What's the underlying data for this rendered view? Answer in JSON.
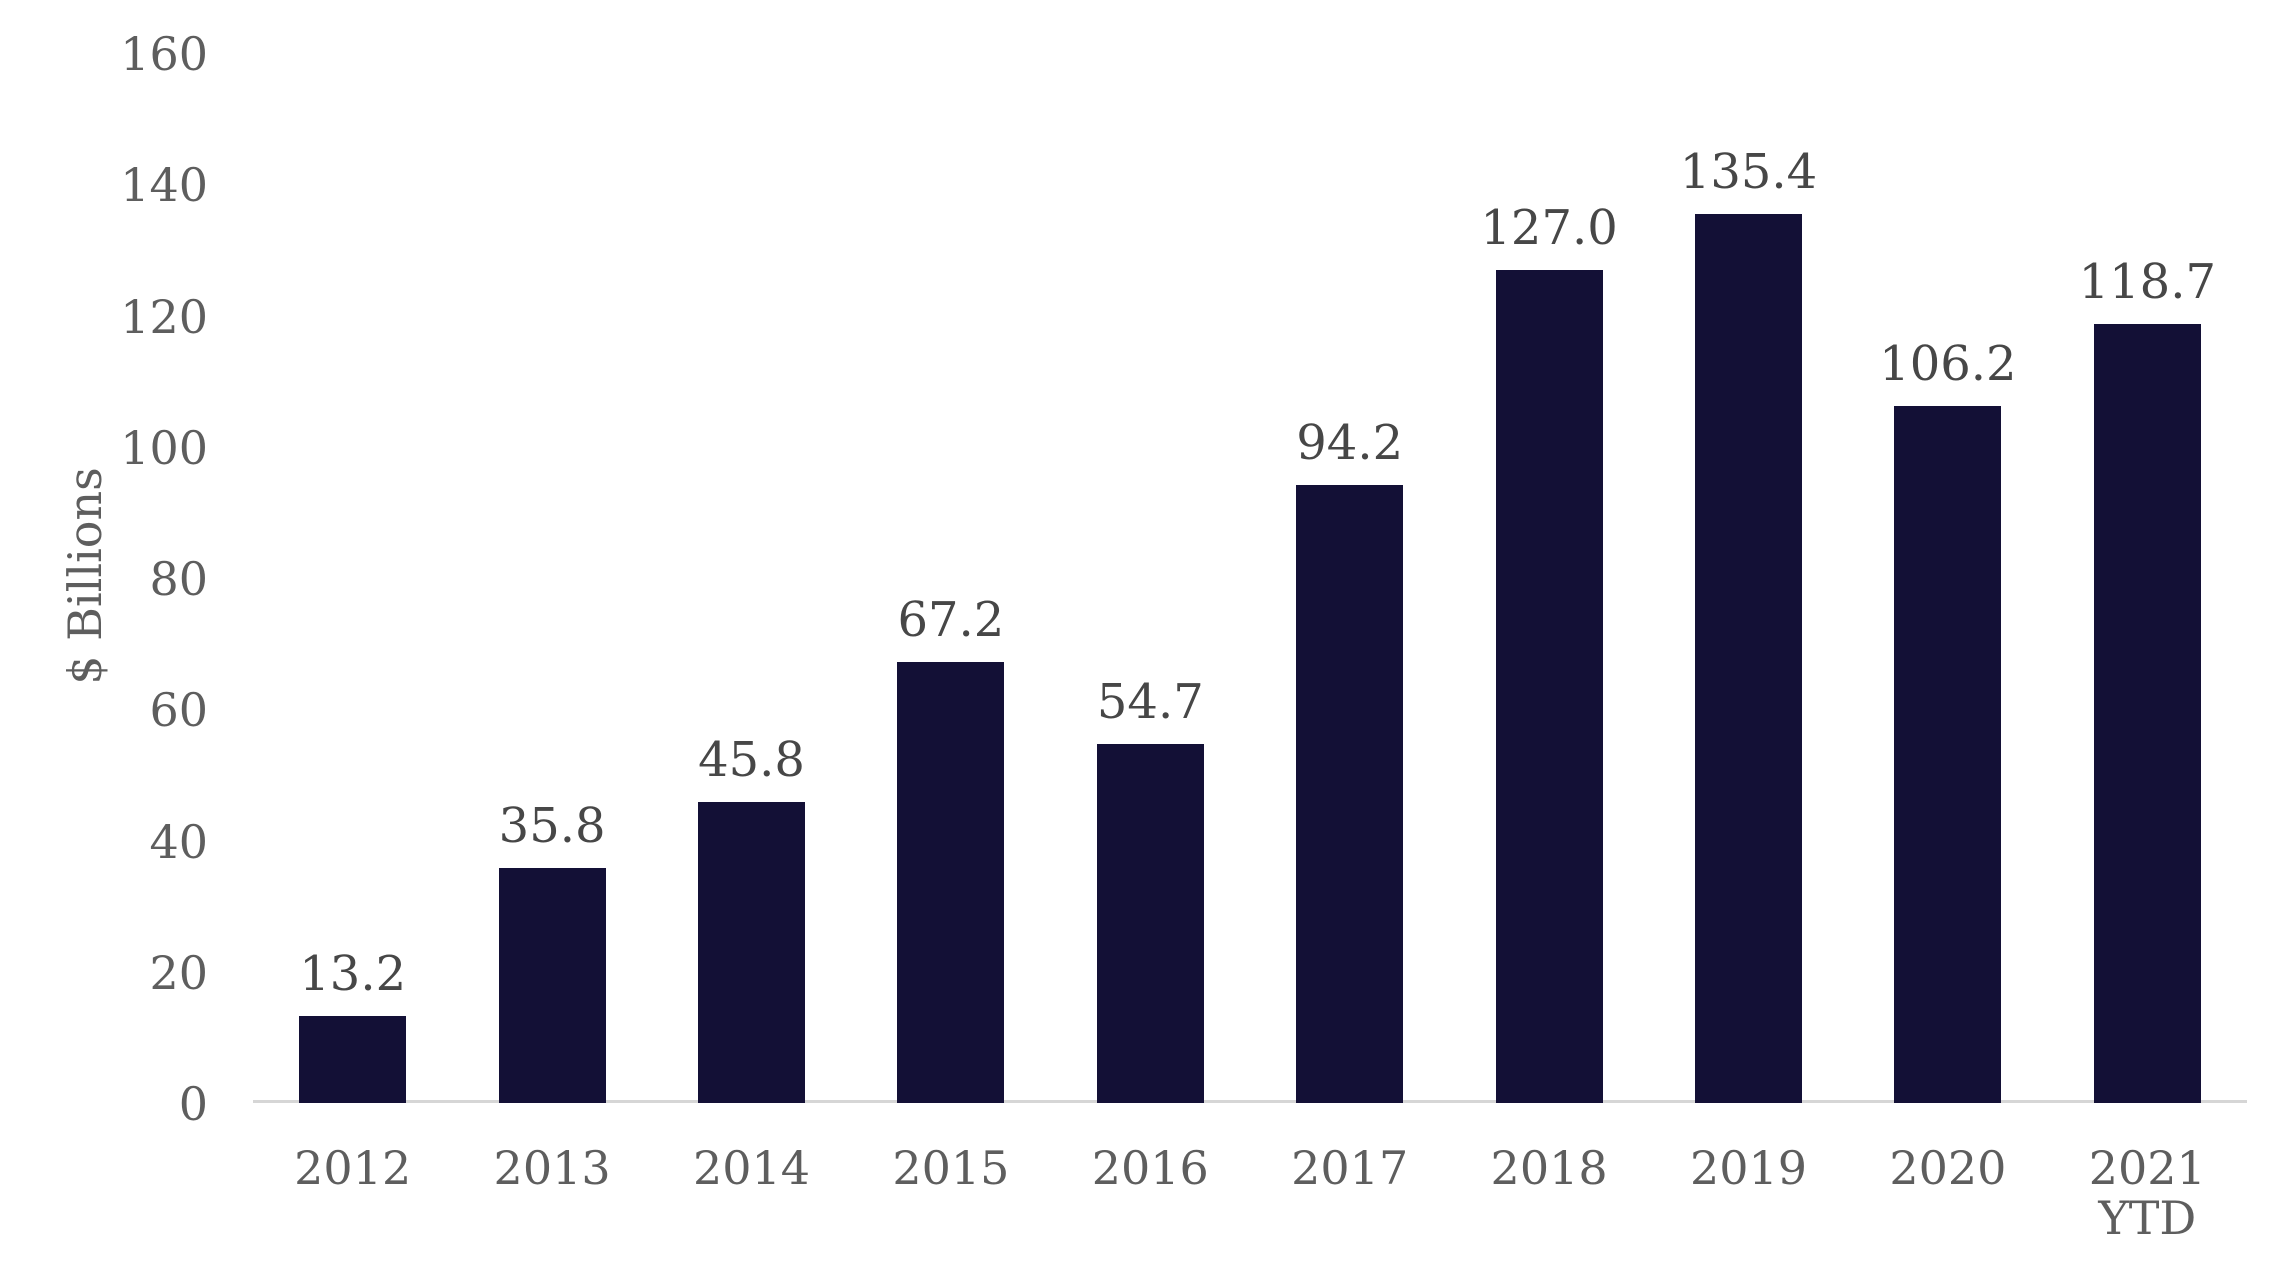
{
  "chart_data": {
    "type": "bar",
    "title": "",
    "xlabel": "",
    "ylabel": "$ Billions",
    "categories": [
      "2012",
      "2013",
      "2014",
      "2015",
      "2016",
      "2017",
      "2018",
      "2019",
      "2020",
      "2021\nYTD"
    ],
    "values": [
      13.2,
      35.8,
      45.8,
      67.2,
      54.7,
      94.2,
      127.0,
      135.4,
      106.2,
      118.7
    ],
    "value_labels": [
      "13.2",
      "35.8",
      "45.8",
      "67.2",
      "54.7",
      "94.2",
      "127.0",
      "135.4",
      "106.2",
      "118.7"
    ],
    "yticks": [
      0,
      20,
      40,
      60,
      80,
      100,
      120,
      140,
      160
    ],
    "ylim": [
      0,
      160
    ],
    "grid": "off",
    "legend": "none",
    "colors": {
      "bar": "#131036",
      "axis_text": "#5E5E5E",
      "data_label": "#474747",
      "axis_line": "#D6D6D6"
    }
  }
}
